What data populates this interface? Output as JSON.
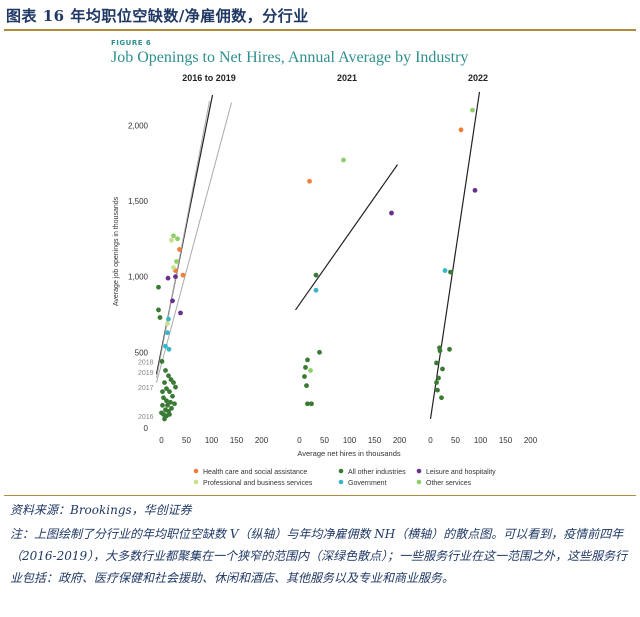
{
  "header": {
    "title": "图表 16   年均职位空缺数/净雇佣数，分行业"
  },
  "figure": {
    "label": "FIGURE 6",
    "title": "Job Openings to Net Hires, Annual Average by Industry"
  },
  "colors": {
    "health": "#f07f3c",
    "other_industries": "#3a7a35",
    "leisure": "#6a2f8a",
    "professional": "#c9e08a",
    "government": "#38b6c9",
    "other_services": "#8fcf6a",
    "fit_line": "#222222",
    "fit_line_prev": "#aaaaaa"
  },
  "chart_data": {
    "type": "scatter",
    "ylabel": "Average job openings in thousands",
    "xlabel": "Average net hires in thousands",
    "xlim": [
      -15,
      205
    ],
    "ylim": [
      0,
      2200
    ],
    "xticks": [
      "0",
      "50",
      "100",
      "150",
      "200"
    ],
    "yticks": [
      {
        "v": 0,
        "label": "0"
      },
      {
        "v": 500,
        "label": "500"
      },
      {
        "v": 1000,
        "label": "1,000"
      },
      {
        "v": 1500,
        "label": "1,500"
      },
      {
        "v": 2000,
        "label": "2,000"
      }
    ],
    "legend": [
      {
        "key": "health",
        "label": "Health care and social assistance"
      },
      {
        "key": "other_industries",
        "label": "All other industries"
      },
      {
        "key": "leisure",
        "label": "Leisure and hospitality"
      },
      {
        "key": "professional",
        "label": "Professional and business services"
      },
      {
        "key": "government",
        "label": "Government"
      },
      {
        "key": "other_services",
        "label": "Other services"
      }
    ],
    "panels": [
      {
        "title": "2016 to 2019",
        "year_labels": [
          {
            "text": "2018",
            "y": 440
          },
          {
            "text": "2019",
            "y": 370
          },
          {
            "text": "2017",
            "y": 270
          },
          {
            "text": "2016",
            "y": 80
          }
        ],
        "fit_lines": [
          {
            "x1": -10,
            "y1": 355,
            "x2": 102,
            "y2": 2200,
            "style": "dark"
          },
          {
            "x1": -10,
            "y1": 330,
            "x2": 96,
            "y2": 2160,
            "style": "prev"
          },
          {
            "x1": -10,
            "y1": 300,
            "x2": 140,
            "y2": 2150,
            "style": "prev"
          }
        ],
        "points": [
          {
            "x": 43,
            "y": 1010,
            "s": "health"
          },
          {
            "x": 28,
            "y": 1040,
            "s": "health"
          },
          {
            "x": 36,
            "y": 1180,
            "s": "health"
          },
          {
            "x": 24,
            "y": 1270,
            "s": "other_services"
          },
          {
            "x": 32,
            "y": 1250,
            "s": "other_services"
          },
          {
            "x": 30,
            "y": 1100,
            "s": "other_services"
          },
          {
            "x": 20,
            "y": 1240,
            "s": "professional"
          },
          {
            "x": 24,
            "y": 1060,
            "s": "professional"
          },
          {
            "x": 13,
            "y": 990,
            "s": "leisure"
          },
          {
            "x": 28,
            "y": 1000,
            "s": "leisure"
          },
          {
            "x": 22,
            "y": 840,
            "s": "leisure"
          },
          {
            "x": 38,
            "y": 760,
            "s": "leisure"
          },
          {
            "x": 14,
            "y": 720,
            "s": "government"
          },
          {
            "x": 12,
            "y": 630,
            "s": "government"
          },
          {
            "x": 8,
            "y": 540,
            "s": "government"
          },
          {
            "x": 15,
            "y": 520,
            "s": "government"
          },
          {
            "x": 12,
            "y": 690,
            "s": "professional"
          },
          {
            "x": -6,
            "y": 930,
            "s": "other_industries"
          },
          {
            "x": -6,
            "y": 780,
            "s": "other_industries"
          },
          {
            "x": -3,
            "y": 730,
            "s": "other_industries"
          },
          {
            "x": 1,
            "y": 440,
            "s": "other_industries"
          },
          {
            "x": 8,
            "y": 380,
            "s": "other_industries"
          },
          {
            "x": 14,
            "y": 345,
            "s": "other_industries"
          },
          {
            "x": 19,
            "y": 320,
            "s": "other_industries"
          },
          {
            "x": 24,
            "y": 300,
            "s": "other_industries"
          },
          {
            "x": 28,
            "y": 270,
            "s": "other_industries"
          },
          {
            "x": 10,
            "y": 260,
            "s": "other_industries"
          },
          {
            "x": 16,
            "y": 240,
            "s": "other_industries"
          },
          {
            "x": 22,
            "y": 210,
            "s": "other_industries"
          },
          {
            "x": 4,
            "y": 200,
            "s": "other_industries"
          },
          {
            "x": 10,
            "y": 180,
            "s": "other_industries"
          },
          {
            "x": 18,
            "y": 170,
            "s": "other_industries"
          },
          {
            "x": 26,
            "y": 160,
            "s": "other_industries"
          },
          {
            "x": 2,
            "y": 150,
            "s": "other_industries"
          },
          {
            "x": 8,
            "y": 120,
            "s": "other_industries"
          },
          {
            "x": 14,
            "y": 110,
            "s": "other_industries"
          },
          {
            "x": 20,
            "y": 130,
            "s": "other_industries"
          },
          {
            "x": 4,
            "y": 90,
            "s": "other_industries"
          },
          {
            "x": 10,
            "y": 80,
            "s": "other_industries"
          },
          {
            "x": 6,
            "y": 60,
            "s": "other_industries"
          },
          {
            "x": 0,
            "y": 100,
            "s": "other_industries"
          },
          {
            "x": 16,
            "y": 90,
            "s": "other_industries"
          },
          {
            "x": 12,
            "y": 150,
            "s": "other_industries"
          },
          {
            "x": 2,
            "y": 240,
            "s": "other_industries"
          },
          {
            "x": 6,
            "y": 300,
            "s": "other_industries"
          }
        ]
      },
      {
        "title": "2021",
        "year_labels": [],
        "fit_lines": [
          {
            "x1": -8,
            "y1": 780,
            "x2": 196,
            "y2": 1740,
            "style": "dark"
          }
        ],
        "points": [
          {
            "x": 20,
            "y": 1630,
            "s": "health"
          },
          {
            "x": 88,
            "y": 1770,
            "s": "other_services"
          },
          {
            "x": 184,
            "y": 1420,
            "s": "leisure"
          },
          {
            "x": 33,
            "y": 1010,
            "s": "other_industries"
          },
          {
            "x": 33,
            "y": 910,
            "s": "government"
          },
          {
            "x": 40,
            "y": 500,
            "s": "other_industries"
          },
          {
            "x": 16,
            "y": 450,
            "s": "other_industries"
          },
          {
            "x": 12,
            "y": 400,
            "s": "other_industries"
          },
          {
            "x": 22,
            "y": 380,
            "s": "other_services"
          },
          {
            "x": 10,
            "y": 340,
            "s": "other_industries"
          },
          {
            "x": 14,
            "y": 280,
            "s": "other_industries"
          },
          {
            "x": 16,
            "y": 160,
            "s": "other_industries"
          },
          {
            "x": 24,
            "y": 160,
            "s": "other_industries"
          }
        ]
      },
      {
        "title": "2022",
        "year_labels": [],
        "fit_lines": [
          {
            "x1": 0,
            "y1": 60,
            "x2": 98,
            "y2": 2220,
            "style": "dark"
          }
        ],
        "points": [
          {
            "x": 84,
            "y": 2100,
            "s": "other_services"
          },
          {
            "x": 61,
            "y": 1970,
            "s": "health"
          },
          {
            "x": 89,
            "y": 1570,
            "s": "leisure"
          },
          {
            "x": 29,
            "y": 1040,
            "s": "government"
          },
          {
            "x": 40,
            "y": 1030,
            "s": "other_industries"
          },
          {
            "x": 18,
            "y": 530,
            "s": "other_industries"
          },
          {
            "x": 19,
            "y": 510,
            "s": "other_industries"
          },
          {
            "x": 38,
            "y": 520,
            "s": "other_industries"
          },
          {
            "x": 12,
            "y": 430,
            "s": "other_industries"
          },
          {
            "x": 24,
            "y": 390,
            "s": "other_industries"
          },
          {
            "x": 16,
            "y": 330,
            "s": "other_industries"
          },
          {
            "x": 14,
            "y": 250,
            "s": "other_industries"
          },
          {
            "x": 22,
            "y": 200,
            "s": "other_industries"
          },
          {
            "x": 12,
            "y": 300,
            "s": "other_industries"
          }
        ]
      }
    ]
  },
  "footer": {
    "source": "资料来源：Brookings，华创证券",
    "note": "注：上图绘制了分行业的年均职位空缺数 V（纵轴）与年均净雇佣数 NH（横轴）的散点图。可以看到，疫情前四年（2016-2019），大多数行业都聚集在一个狭窄的范围内（深绿色散点）；一些服务行业在这一范围之外，这些服务行业包括：政府、医疗保健和社会援助、休闲和酒店、其他服务以及专业和商业服务。"
  }
}
